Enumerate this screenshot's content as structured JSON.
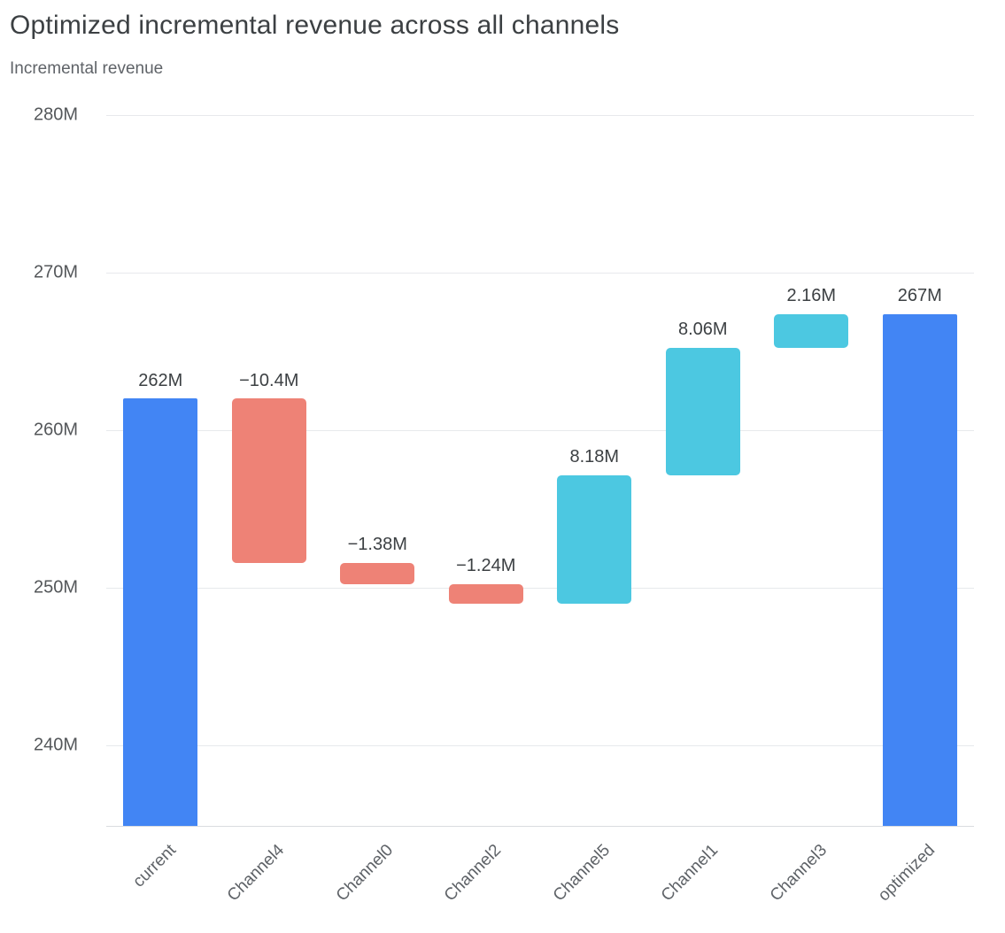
{
  "header": {
    "title": "Optimized incremental revenue across all channels",
    "subtitle": "Incremental revenue"
  },
  "chart_data": {
    "type": "bar",
    "subtype": "waterfall",
    "title": "Optimized incremental revenue across all channels",
    "ylabel": "Incremental revenue",
    "unit": "M",
    "ylim": [
      234.9,
      280
    ],
    "grid": true,
    "legend": false,
    "baseline": 234.9,
    "yticks": [
      {
        "value": 280,
        "label": "280M"
      },
      {
        "value": 270,
        "label": "270M"
      },
      {
        "value": 260,
        "label": "260M"
      },
      {
        "value": 250,
        "label": "250M"
      },
      {
        "value": 240,
        "label": "240M"
      }
    ],
    "categories": [
      "current",
      "Channel4",
      "Channel0",
      "Channel2",
      "Channel5",
      "Channel1",
      "Channel3",
      "optimized"
    ],
    "bars": [
      {
        "category": "current",
        "kind": "total",
        "value": 262,
        "label": "262M"
      },
      {
        "category": "Channel4",
        "kind": "decrease",
        "delta": -10.4,
        "start": 262,
        "end": 251.6,
        "label": "−10.4M"
      },
      {
        "category": "Channel0",
        "kind": "decrease",
        "delta": -1.38,
        "start": 251.6,
        "end": 250.22,
        "label": "−1.38M"
      },
      {
        "category": "Channel2",
        "kind": "decrease",
        "delta": -1.24,
        "start": 250.22,
        "end": 248.98,
        "label": "−1.24M"
      },
      {
        "category": "Channel5",
        "kind": "increase",
        "delta": 8.18,
        "start": 248.98,
        "end": 257.16,
        "label": "8.18M"
      },
      {
        "category": "Channel1",
        "kind": "increase",
        "delta": 8.06,
        "start": 257.16,
        "end": 265.22,
        "label": "8.06M"
      },
      {
        "category": "Channel3",
        "kind": "increase",
        "delta": 2.16,
        "start": 265.22,
        "end": 267.38,
        "label": "2.16M"
      },
      {
        "category": "optimized",
        "kind": "total",
        "value": 267.38,
        "label": "267M"
      }
    ],
    "colors": {
      "total": "#4285f4",
      "increase": "#4cc8e1",
      "decrease": "#ee8276"
    }
  }
}
